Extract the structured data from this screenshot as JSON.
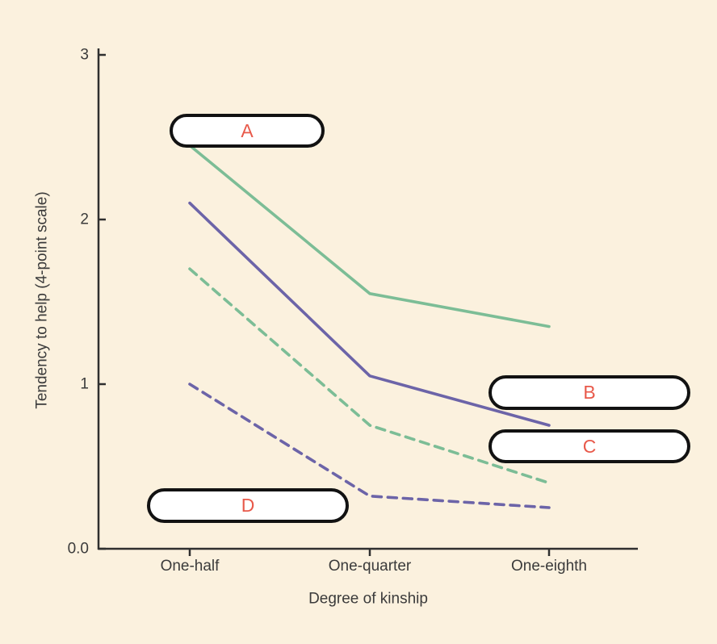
{
  "colors": {
    "background": "#fbf1de",
    "axis": "#2f2f2f",
    "text": "#3b3b3b",
    "green_line": "#7cbd96",
    "purple_line": "#6c64a8",
    "callout_letter": "#e8594a",
    "callout_border": "#121212",
    "callout_bg": "#ffffff"
  },
  "chart_data": {
    "type": "line",
    "title": "",
    "xlabel": "Degree of kinship",
    "ylabel": "Tendency to help (4-point scale)",
    "categories": [
      "One-half",
      "One-quarter",
      "One-eighth"
    ],
    "ylim": [
      0,
      3
    ],
    "yticks": [
      {
        "value": 3,
        "label": "3"
      },
      {
        "value": 2,
        "label": "2"
      },
      {
        "value": 1,
        "label": "1"
      },
      {
        "value": 0,
        "label": "0.0"
      }
    ],
    "grid": false,
    "legend": "none",
    "series": [
      {
        "name": "solid-green",
        "style": "solid",
        "color": "#7cbd96",
        "values": [
          2.45,
          1.55,
          1.35
        ]
      },
      {
        "name": "solid-purple",
        "style": "solid",
        "color": "#6c64a8",
        "values": [
          2.1,
          1.05,
          0.75
        ]
      },
      {
        "name": "dashed-green",
        "style": "dashed",
        "color": "#7cbd96",
        "values": [
          1.7,
          0.75,
          0.4
        ]
      },
      {
        "name": "dashed-purple",
        "style": "dashed",
        "color": "#6c64a8",
        "values": [
          1.0,
          0.32,
          0.25
        ]
      }
    ]
  },
  "callouts": [
    {
      "label": "A"
    },
    {
      "label": "B"
    },
    {
      "label": "C"
    },
    {
      "label": "D"
    }
  ]
}
